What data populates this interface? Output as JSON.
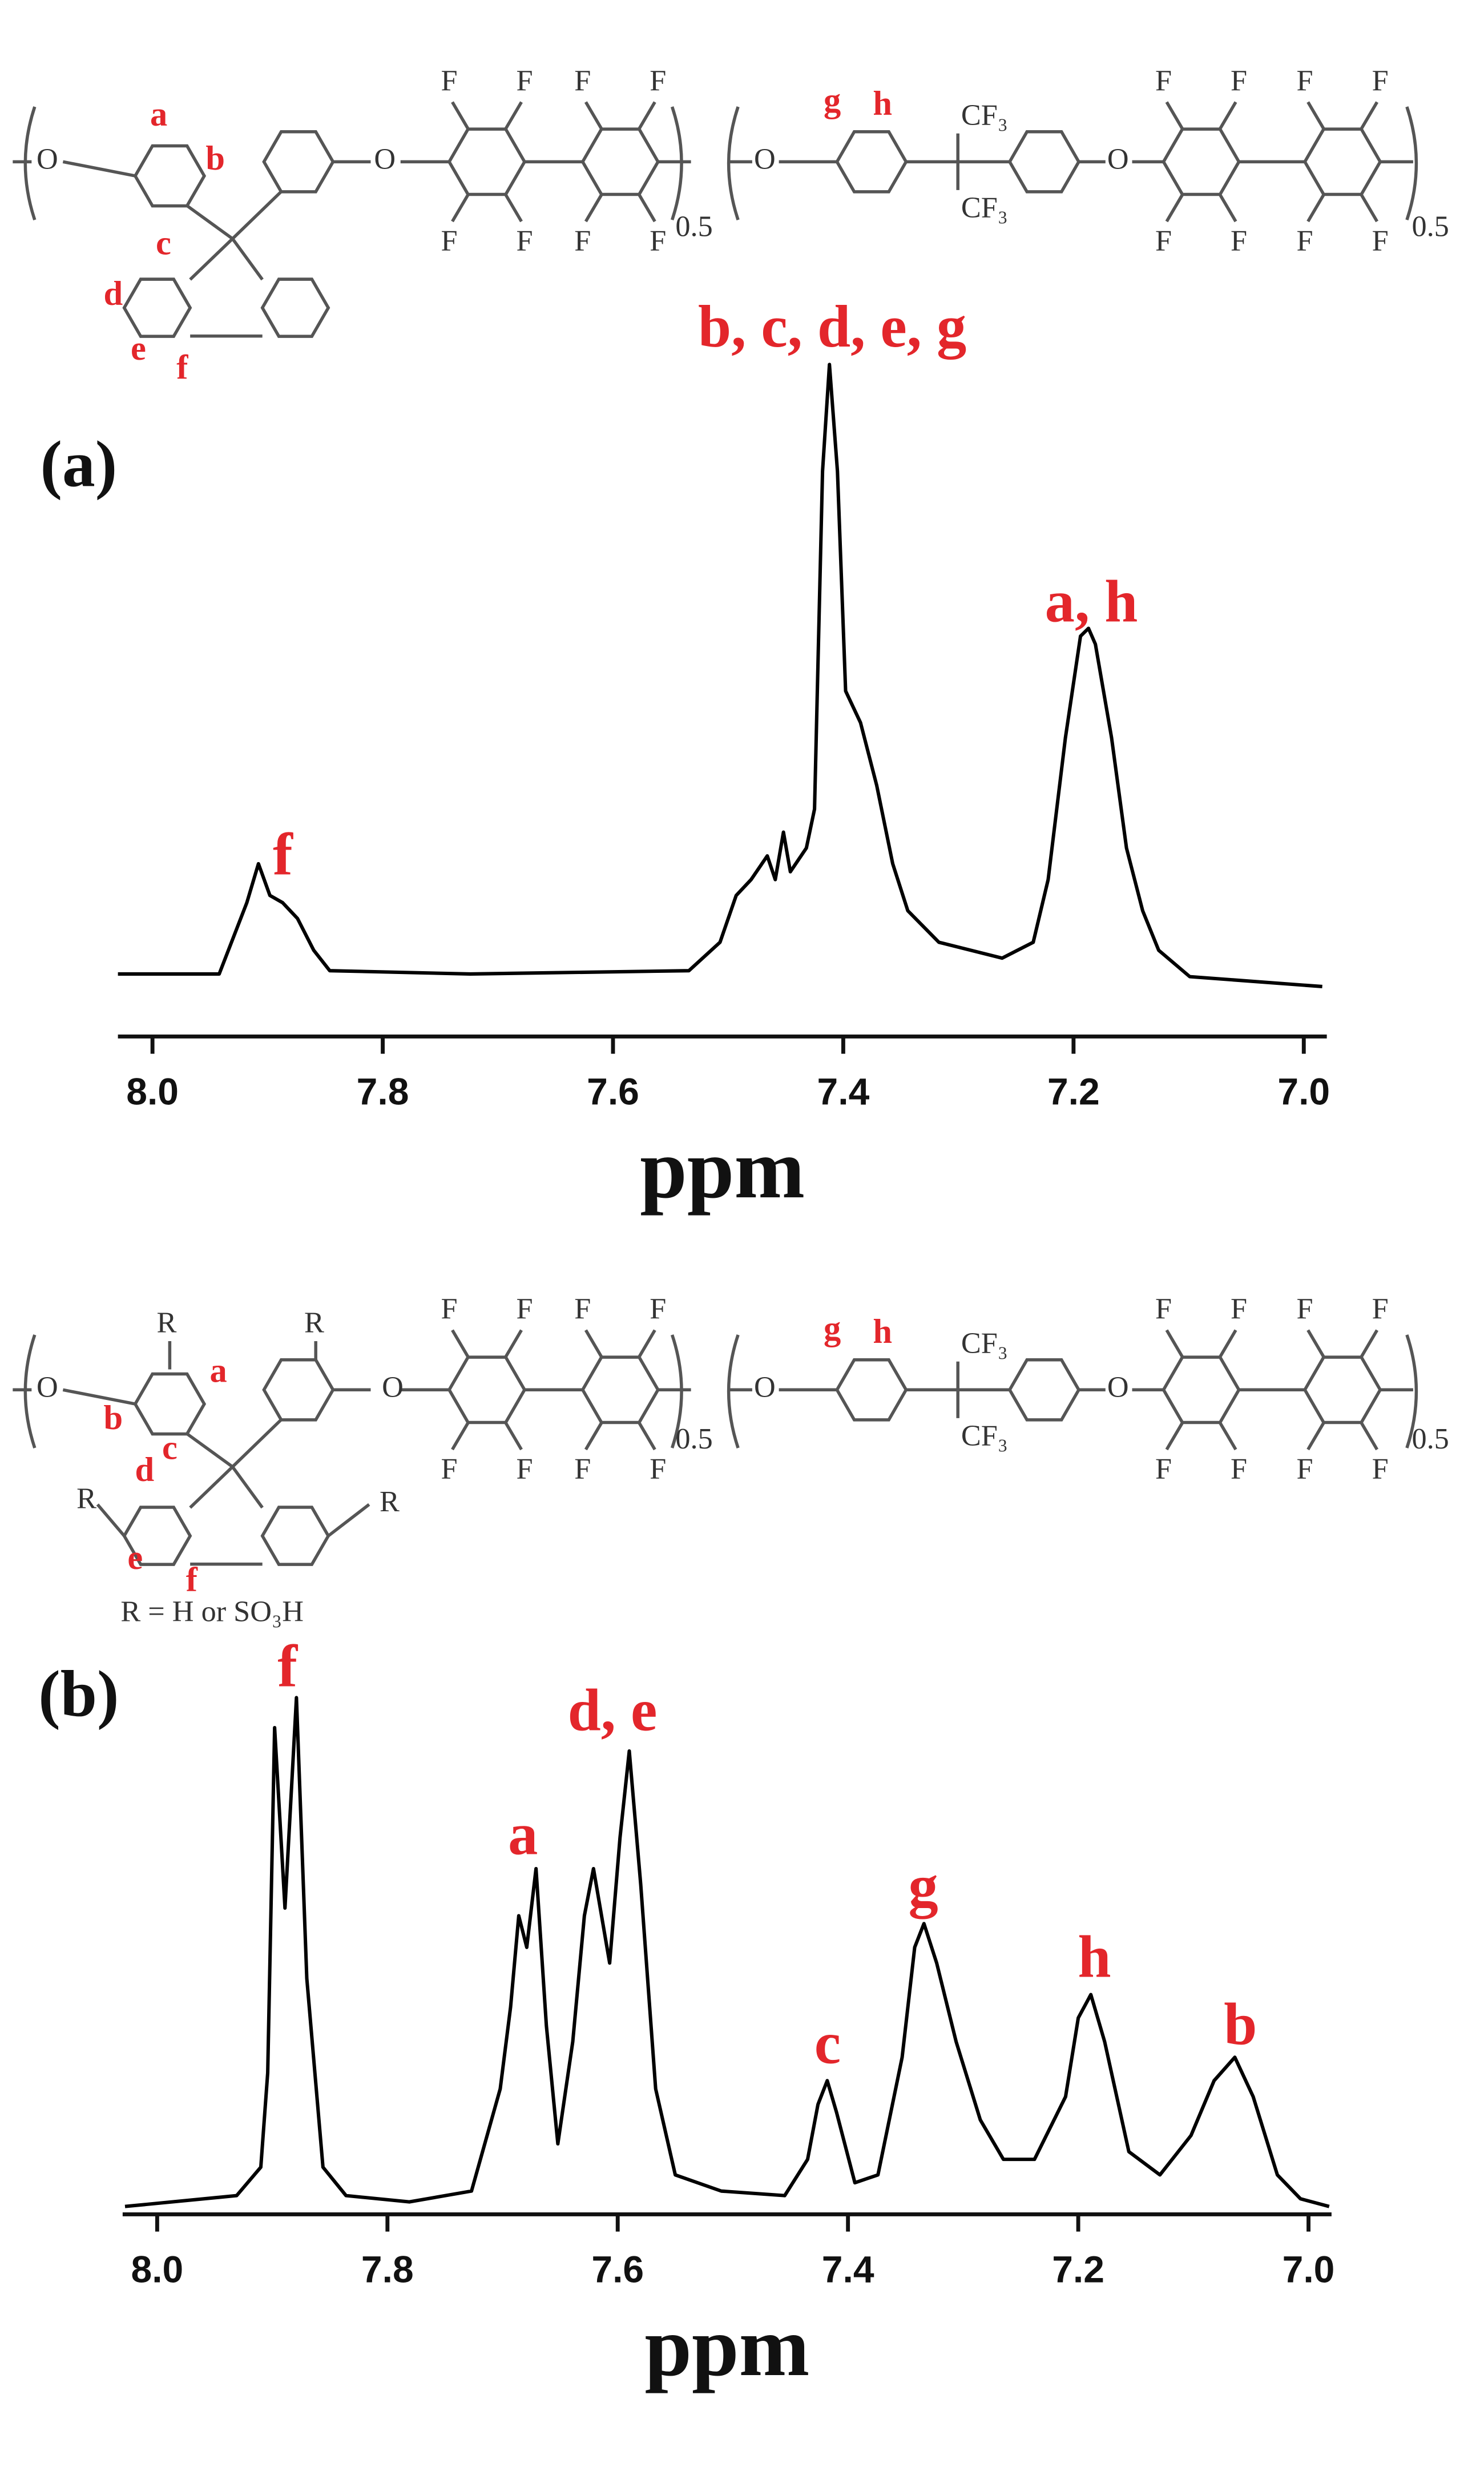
{
  "chart_data": [
    {
      "type": "line",
      "panel_label": "(a)",
      "xlabel": "ppm",
      "color": "#000000",
      "xlim": [
        8.03,
        6.98
      ],
      "ylim": [
        0,
        100
      ],
      "xticks": [
        {
          "value": 8,
          "label": "8.0"
        },
        7.8,
        7.6,
        7.4,
        7.2,
        {
          "value": 7,
          "label": "7.0"
        }
      ],
      "x": [
        8.03,
        7.942,
        7.918,
        7.908,
        7.898,
        7.887,
        7.874,
        7.86,
        7.846,
        7.724,
        7.534,
        7.507,
        7.493,
        7.48,
        7.466,
        7.459,
        7.452,
        7.446,
        7.432,
        7.425,
        7.418,
        7.412,
        7.405,
        7.398,
        7.385,
        7.371,
        7.357,
        7.344,
        7.317,
        7.262,
        7.235,
        7.222,
        7.207,
        7.194,
        7.187,
        7.181,
        7.167,
        7.154,
        7.14,
        7.126,
        7.099,
        6.984
      ],
      "values": [
        7.1,
        7.1,
        17.9,
        23.8,
        19,
        17.9,
        15.5,
        10.7,
        7.6,
        7.1,
        7.6,
        11.9,
        19,
        21.4,
        25,
        21.4,
        28.6,
        22.6,
        26.2,
        32.1,
        83.3,
        99.5,
        83.3,
        50,
        45.2,
        35.7,
        23.8,
        16.7,
        11.9,
        9.5,
        11.9,
        21.4,
        42.9,
        58.3,
        59.5,
        57.1,
        42.9,
        26.2,
        16.7,
        10.7,
        6.7,
        5.2
      ],
      "annotations": [
        "f",
        "b, c, d, e, g",
        "a, h"
      ],
      "structure_labels": [
        "O",
        "a",
        "b",
        "c",
        "d",
        "e",
        "f",
        "O",
        "F",
        "F",
        "F",
        "F",
        "F",
        "F",
        "F",
        "F",
        "0.5",
        "O",
        "g",
        "h",
        "CF₃",
        "CF₃",
        "O",
        "F",
        "F",
        "F",
        "F",
        "F",
        "F",
        "F",
        "F",
        "0.5"
      ]
    },
    {
      "type": "line",
      "panel_label": "(b)",
      "xlabel": "ppm",
      "color": "#000000",
      "xlim": [
        8.03,
        6.98
      ],
      "ylim": [
        0,
        100
      ],
      "xticks": [
        {
          "value": 8,
          "label": "8.0"
        },
        7.8,
        7.6,
        7.4,
        7.2,
        {
          "value": 7,
          "label": "7.0"
        }
      ],
      "x": [
        8.028,
        7.931,
        7.91,
        7.904,
        7.898,
        7.889,
        7.879,
        7.87,
        7.856,
        7.836,
        7.781,
        7.727,
        7.702,
        7.693,
        7.686,
        7.679,
        7.671,
        7.662,
        7.652,
        7.639,
        7.629,
        7.621,
        7.607,
        7.598,
        7.59,
        7.58,
        7.567,
        7.55,
        7.51,
        7.455,
        7.435,
        7.426,
        7.418,
        7.41,
        7.394,
        7.374,
        7.353,
        7.342,
        7.334,
        7.323,
        7.306,
        7.285,
        7.265,
        7.238,
        7.211,
        7.2,
        7.189,
        7.177,
        7.156,
        7.129,
        7.102,
        7.082,
        7.064,
        7.048,
        7.027,
        7.007,
        6.982
      ],
      "values": [
        1.5,
        3.6,
        9.1,
        27.3,
        93.9,
        59.1,
        99.7,
        45.5,
        9.1,
        3.6,
        2.4,
        4.5,
        24.2,
        40,
        57.6,
        51.5,
        66.7,
        36.4,
        13.6,
        33.3,
        57.6,
        66.7,
        48.5,
        72.7,
        89.4,
        63.6,
        24.2,
        7.6,
        4.5,
        3.6,
        10.6,
        21.2,
        25.8,
        19.7,
        6.1,
        7.6,
        30.3,
        51.5,
        56.1,
        48.5,
        33.3,
        18.2,
        10.6,
        10.6,
        22.7,
        37.9,
        42.4,
        33.3,
        12.1,
        7.6,
        15.2,
        25.8,
        30.3,
        22.7,
        7.6,
        3,
        1.5
      ],
      "annotations": [
        "f",
        "a",
        "d, e",
        "c",
        "g",
        "h",
        "b"
      ],
      "structure_labels": [
        "O",
        "R",
        "a",
        "b",
        "c",
        "d",
        "R",
        "e",
        "f",
        "R",
        "R",
        "R = H or SO₃H",
        "O",
        "F",
        "F",
        "F",
        "F",
        "F",
        "F",
        "F",
        "F",
        "0.5",
        "O",
        "g",
        "h",
        "CF₃",
        "CF₃",
        "O",
        "F",
        "F",
        "F",
        "F",
        "F",
        "F",
        "F",
        "F",
        "0.5"
      ]
    }
  ]
}
